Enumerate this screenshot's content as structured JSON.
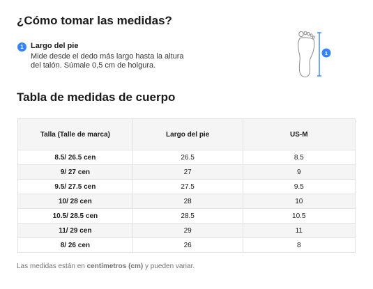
{
  "header": {
    "title": "¿Cómo tomar las medidas?"
  },
  "step": {
    "number": "1",
    "title": "Largo del pie",
    "description": "Mide desde el dedo más largo hasta la altura del talón. Súmale 0,5 cm de holgura."
  },
  "figure": {
    "icon": "foot-length-icon",
    "marker": "1",
    "accent": "#3483fa"
  },
  "table": {
    "title": "Tabla de medidas de cuerpo",
    "headers": [
      "Talla (Talle de marca)",
      "Largo del pie",
      "US-M"
    ],
    "rows": [
      [
        "8.5/ 26.5 cen",
        "26.5",
        "8.5"
      ],
      [
        "9/ 27 cen",
        "27",
        "9"
      ],
      [
        "9.5/ 27.5 cen",
        "27.5",
        "9.5"
      ],
      [
        "10/ 28 cen",
        "28",
        "10"
      ],
      [
        "10.5/ 28.5 cen",
        "28.5",
        "10.5"
      ],
      [
        "11/ 29 cen",
        "29",
        "11"
      ],
      [
        "8/ 26 cen",
        "26",
        "8"
      ]
    ]
  },
  "footnote": {
    "before": "Las medidas están en ",
    "bold": "centímetros (cm)",
    "after": " y pueden variar."
  }
}
